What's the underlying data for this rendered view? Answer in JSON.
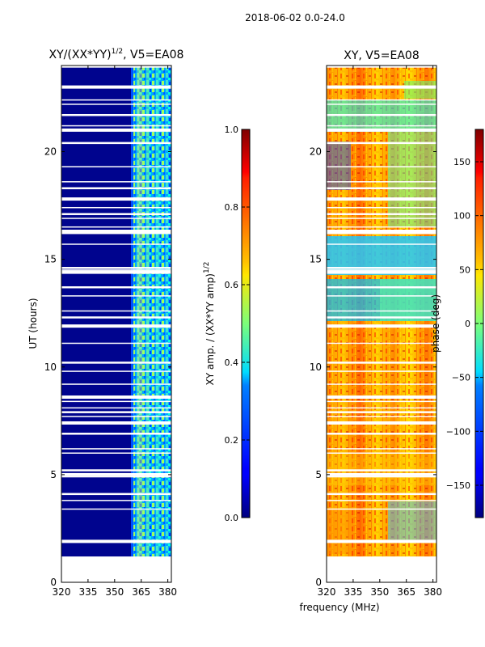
{
  "suptitle": "2018-06-02 0.0-24.0",
  "xlabel_shared": "frequency (MHz)",
  "chart_data": [
    {
      "type": "heatmap",
      "title_main": "XY/(XX*YY)",
      "title_sup": "1/2",
      "title_tail": ", V5=EA08",
      "ylabel": "UT (hours)",
      "xlim": [
        320,
        382
      ],
      "ylim": [
        0,
        24
      ],
      "xticks": [
        320,
        335,
        350,
        365,
        380
      ],
      "yticks": [
        0,
        5,
        10,
        15,
        20
      ],
      "colorbar": {
        "label_main": "XY amp. / (XX*YY amp)",
        "label_sup": "1/2",
        "range": [
          0.0,
          1.0
        ],
        "ticks": [
          "0.0",
          "0.2",
          "0.4",
          "0.6",
          "0.8",
          "1.0"
        ],
        "colormap": "jet"
      },
      "data_extent_ut": [
        1.2,
        23.9
      ],
      "high_band_mhz": [
        360,
        382
      ]
    },
    {
      "type": "heatmap",
      "title": "XY, V5=EA08",
      "xlim": [
        320,
        382
      ],
      "ylim": [
        0,
        24
      ],
      "xticks": [
        320,
        335,
        350,
        365,
        380
      ],
      "yticks": [
        0,
        5,
        10,
        15,
        20
      ],
      "colorbar": {
        "label": "phase (deg)",
        "range": [
          -180,
          180
        ],
        "ticks": [
          "150",
          "100",
          "50",
          "0",
          "−50",
          "−100",
          "−150"
        ],
        "colormap": "jet"
      },
      "data_extent_ut": [
        1.2,
        23.9
      ]
    }
  ],
  "gap_rows_ut": [
    1.9,
    3.4,
    3.8,
    4.1,
    4.9,
    5.0,
    5.2,
    6.0,
    6.2,
    6.9,
    7.4,
    7.7,
    7.9,
    8.1,
    8.4,
    8.6,
    9.2,
    9.8,
    10.2,
    11.1,
    11.9,
    12.3,
    12.6,
    13.3,
    13.7,
    14.4,
    14.5,
    14.6,
    15.7,
    16.2,
    16.3,
    16.5,
    16.9,
    17.1,
    17.4,
    17.8,
    18.3,
    18.6,
    19.3,
    20.4,
    21.0,
    21.2,
    21.7,
    22.2,
    22.4,
    23.0
  ]
}
